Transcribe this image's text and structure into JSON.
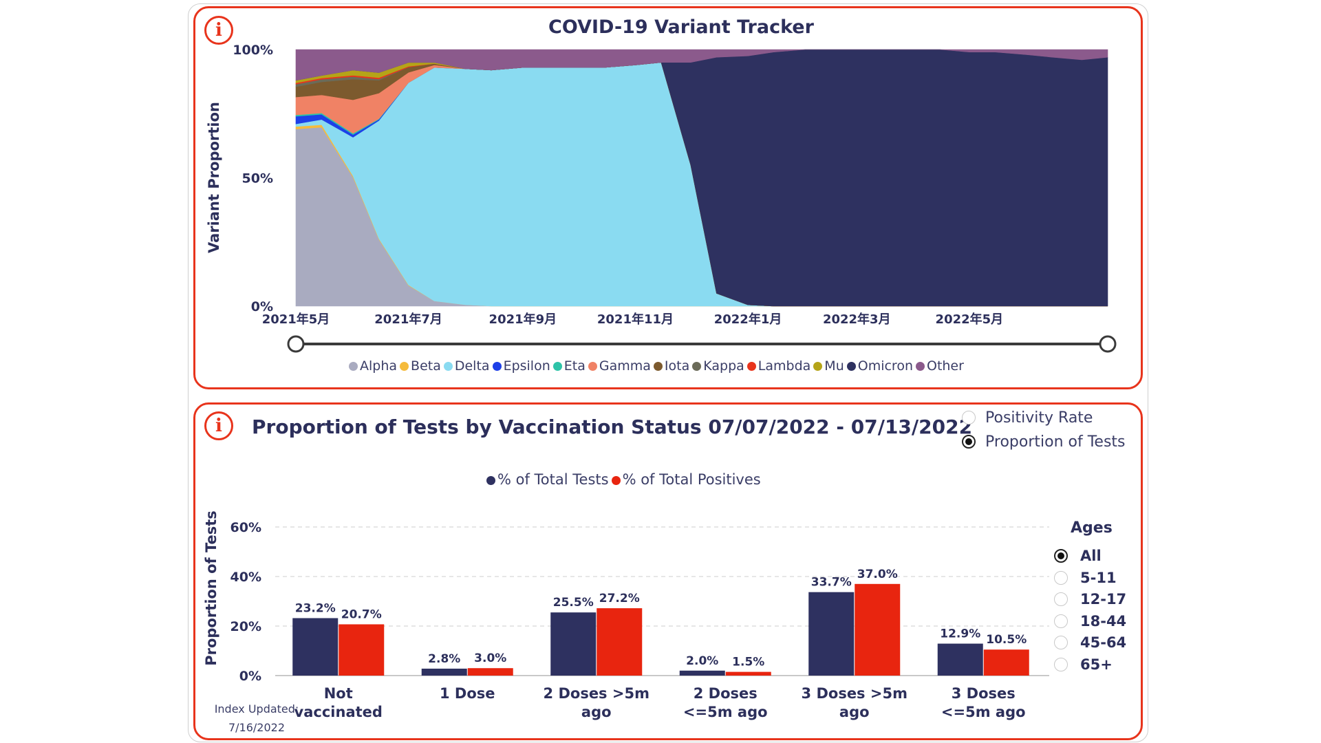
{
  "variant_tracker": {
    "title": "COVID-19 Variant Tracker",
    "info_icon": "info-icon"
  },
  "tests_panel": {
    "title": "Proportion of Tests by Vaccination Status 07/07/2022 - 07/13/2022",
    "info_icon": "info-icon",
    "metric_options": [
      {
        "label": "Positivity Rate",
        "selected": false
      },
      {
        "label": "Proportion of Tests",
        "selected": true
      }
    ],
    "ages": {
      "title": "Ages",
      "options": [
        {
          "label": "All",
          "selected": true
        },
        {
          "label": "5-11",
          "selected": false
        },
        {
          "label": "12-17",
          "selected": false
        },
        {
          "label": "18-44",
          "selected": false
        },
        {
          "label": "45-64",
          "selected": false
        },
        {
          "label": "65+",
          "selected": false
        }
      ]
    },
    "index_updated_label": "Index Updated:",
    "index_updated_date": "7/16/2022"
  },
  "chart_data": [
    {
      "type": "area",
      "stacked": "percent",
      "title": "COVID-19 Variant Tracker",
      "ylabel": "Variant Proportion",
      "ylim": [
        0,
        100
      ],
      "yticks": [
        "0%",
        "50%",
        "100%"
      ],
      "xticks": [
        "2021年5月",
        "2021年7月",
        "2021年9月",
        "2021年11月",
        "2022年1月",
        "2022年3月",
        "2022年5月"
      ],
      "x": [
        "2021-05-01",
        "2021-05-15",
        "2021-06-01",
        "2021-06-15",
        "2021-07-01",
        "2021-07-15",
        "2021-08-01",
        "2021-08-15",
        "2021-09-01",
        "2021-09-15",
        "2021-10-01",
        "2021-10-15",
        "2021-11-01",
        "2021-11-15",
        "2021-12-01",
        "2021-12-15",
        "2022-01-01",
        "2022-01-15",
        "2022-02-01",
        "2022-02-15",
        "2022-03-01",
        "2022-03-15",
        "2022-04-01",
        "2022-04-15",
        "2022-05-01",
        "2022-05-15",
        "2022-06-01",
        "2022-06-15",
        "2022-07-01",
        "2022-07-15"
      ],
      "series": [
        {
          "name": "Alpha",
          "color": "#a9abc0",
          "values": [
            69,
            69,
            50,
            26,
            8,
            2,
            0.5,
            0,
            0,
            0,
            0,
            0,
            0,
            0,
            0,
            0,
            0,
            0,
            0,
            0,
            0,
            0,
            0,
            0,
            0,
            0,
            0,
            0,
            0,
            0
          ]
        },
        {
          "name": "Beta",
          "color": "#f5bb3c",
          "values": [
            1,
            1,
            0.5,
            0.3,
            0.2,
            0,
            0,
            0,
            0,
            0,
            0,
            0,
            0,
            0,
            0,
            0,
            0,
            0,
            0,
            0,
            0,
            0,
            0,
            0,
            0,
            0,
            0,
            0,
            0,
            0
          ]
        },
        {
          "name": "Delta",
          "color": "#8adbf1",
          "values": [
            1,
            2,
            15,
            46,
            78,
            91,
            92,
            92,
            93,
            93,
            93,
            93,
            94,
            95,
            55,
            5,
            0.5,
            0,
            0,
            0,
            0,
            0,
            0,
            0,
            0,
            0,
            0,
            0,
            0,
            0
          ]
        },
        {
          "name": "Epsilon",
          "color": "#1d3fe8",
          "values": [
            3,
            2,
            1,
            0.5,
            0,
            0,
            0,
            0,
            0,
            0,
            0,
            0,
            0,
            0,
            0,
            0,
            0,
            0,
            0,
            0,
            0,
            0,
            0,
            0,
            0,
            0,
            0,
            0,
            0,
            0
          ]
        },
        {
          "name": "Eta",
          "color": "#2dc3a8",
          "values": [
            0.5,
            0.5,
            0.5,
            0.2,
            0,
            0,
            0,
            0,
            0,
            0,
            0,
            0,
            0,
            0,
            0,
            0,
            0,
            0,
            0,
            0,
            0,
            0,
            0,
            0,
            0,
            0,
            0,
            0,
            0,
            0
          ]
        },
        {
          "name": "Gamma",
          "color": "#f08265",
          "values": [
            7,
            7,
            13,
            10,
            4,
            1,
            0,
            0,
            0,
            0,
            0,
            0,
            0,
            0,
            0,
            0,
            0,
            0,
            0,
            0,
            0,
            0,
            0,
            0,
            0,
            0,
            0,
            0,
            0,
            0
          ]
        },
        {
          "name": "Iota",
          "color": "#7c5a2e",
          "values": [
            4,
            5,
            8,
            5,
            2,
            0.5,
            0,
            0,
            0,
            0,
            0,
            0,
            0,
            0,
            0,
            0,
            0,
            0,
            0,
            0,
            0,
            0,
            0,
            0,
            0,
            0,
            0,
            0,
            0,
            0
          ]
        },
        {
          "name": "Kappa",
          "color": "#6b6b59",
          "values": [
            1,
            1,
            1,
            0.5,
            0,
            0,
            0,
            0,
            0,
            0,
            0,
            0,
            0,
            0,
            0,
            0,
            0,
            0,
            0,
            0,
            0,
            0,
            0,
            0,
            0,
            0,
            0,
            0,
            0,
            0
          ]
        },
        {
          "name": "Lambda",
          "color": "#e8341c",
          "values": [
            0.5,
            0.5,
            0.5,
            0.5,
            0.3,
            0,
            0,
            0,
            0,
            0,
            0,
            0,
            0,
            0,
            0,
            0,
            0,
            0,
            0,
            0,
            0,
            0,
            0,
            0,
            0,
            0,
            0,
            0,
            0,
            0
          ]
        },
        {
          "name": "Mu",
          "color": "#b5a418",
          "values": [
            1,
            1,
            2,
            2,
            1.5,
            0.5,
            0,
            0,
            0,
            0,
            0,
            0,
            0,
            0,
            0,
            0,
            0,
            0,
            0,
            0,
            0,
            0,
            0,
            0,
            0,
            0,
            0,
            0,
            0,
            0
          ]
        },
        {
          "name": "Omicron",
          "color": "#2e3160",
          "values": [
            0,
            0,
            0,
            0,
            0,
            0,
            0,
            0,
            0,
            0,
            0,
            0,
            0,
            0,
            40,
            92,
            97,
            99,
            100,
            100,
            100,
            100,
            100,
            100,
            99,
            99,
            98,
            97,
            96,
            97
          ]
        },
        {
          "name": "Other",
          "color": "#8b5a8c",
          "values": [
            12,
            10,
            8,
            9,
            5,
            5,
            7.5,
            8,
            7,
            7,
            7,
            7,
            6,
            5,
            5,
            3,
            2.5,
            1,
            0,
            0,
            0,
            0,
            0,
            0,
            1,
            1,
            2,
            3,
            4,
            3
          ]
        }
      ],
      "legend_position": "bottom"
    },
    {
      "type": "bar",
      "ylabel": "Proportion of Tests",
      "ylim": [
        0,
        60
      ],
      "yticks": [
        "0%",
        "20%",
        "40%",
        "60%"
      ],
      "grid": true,
      "categories": [
        [
          "Not",
          "vaccinated"
        ],
        [
          "1 Dose"
        ],
        [
          "2 Doses >5m",
          "ago"
        ],
        [
          "2 Doses",
          "<=5m ago"
        ],
        [
          "3 Doses >5m",
          "ago"
        ],
        [
          "3 Doses",
          "<=5m ago"
        ]
      ],
      "series": [
        {
          "name": "% of Total Tests",
          "color": "#2e3160",
          "values": [
            23.2,
            2.8,
            25.5,
            2.0,
            33.7,
            12.9
          ],
          "labels": [
            "23.2%",
            "2.8%",
            "25.5%",
            "2.0%",
            "33.7%",
            "12.9%"
          ]
        },
        {
          "name": "% of Total Positives",
          "color": "#e8250f",
          "values": [
            20.7,
            3.0,
            27.2,
            1.5,
            37.0,
            10.5
          ],
          "labels": [
            "20.7%",
            "3.0%",
            "27.2%",
            "1.5%",
            "37.0%",
            "10.5%"
          ]
        }
      ],
      "legend_position": "top"
    }
  ]
}
